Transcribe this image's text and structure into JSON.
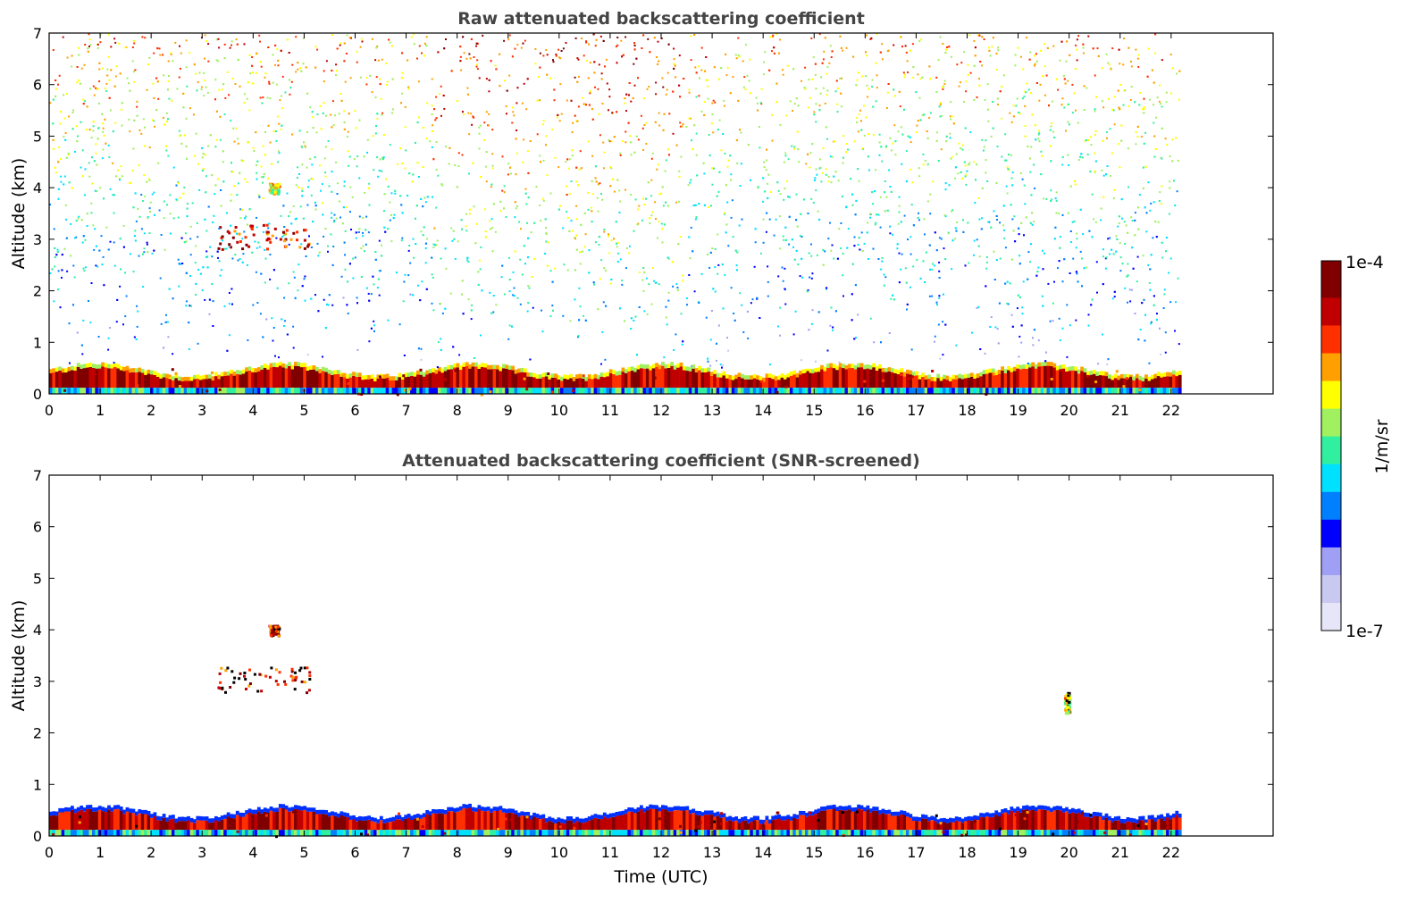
{
  "chart_data": [
    {
      "type": "heatmap",
      "title": "Raw attenuated backscattering coefficient",
      "xlabel": "",
      "ylabel": "Altitude (km)",
      "xlim": [
        0,
        24
      ],
      "ylim": [
        0,
        7
      ],
      "x_ticks": [
        "0",
        "1",
        "2",
        "3",
        "4",
        "5",
        "6",
        "7",
        "8",
        "9",
        "10",
        "11",
        "12",
        "13",
        "14",
        "15",
        "16",
        "17",
        "18",
        "19",
        "20",
        "21",
        "22"
      ],
      "y_ticks": [
        "0",
        "1",
        "2",
        "3",
        "4",
        "5",
        "6",
        "7"
      ],
      "data_extent_hours": [
        0,
        22.15
      ],
      "grid": false,
      "features": [
        {
          "label": "boundary-layer aerosol",
          "x_range": [
            0,
            22.15
          ],
          "y_range": [
            0,
            0.5
          ],
          "level": "high"
        },
        {
          "label": "elevated layer",
          "x_range": [
            3.3,
            5.1
          ],
          "y_range": [
            2.8,
            3.3
          ],
          "level": "high"
        },
        {
          "label": "elevated layer",
          "x_range": [
            4.3,
            4.5
          ],
          "y_range": [
            3.9,
            4.1
          ],
          "level": "medium"
        },
        {
          "label": "noise",
          "x_range": [
            0,
            22.15
          ],
          "y_range": [
            0.5,
            7
          ],
          "level": "noise"
        }
      ]
    },
    {
      "type": "heatmap",
      "title": "Attenuated backscattering coefficient (SNR-screened)",
      "xlabel": "Time (UTC)",
      "ylabel": "Altitude (km)",
      "xlim": [
        0,
        24
      ],
      "ylim": [
        0,
        7
      ],
      "x_ticks": [
        "0",
        "1",
        "2",
        "3",
        "4",
        "5",
        "6",
        "7",
        "8",
        "9",
        "10",
        "11",
        "12",
        "13",
        "14",
        "15",
        "16",
        "17",
        "18",
        "19",
        "20",
        "21",
        "22"
      ],
      "y_ticks": [
        "0",
        "1",
        "2",
        "3",
        "4",
        "5",
        "6",
        "7"
      ],
      "data_extent_hours": [
        0,
        22.15
      ],
      "grid": false,
      "features": [
        {
          "label": "boundary-layer aerosol",
          "x_range": [
            0,
            22.15
          ],
          "y_range": [
            0,
            0.5
          ],
          "level": "high"
        },
        {
          "label": "elevated layer",
          "x_range": [
            3.3,
            5.1
          ],
          "y_range": [
            2.8,
            3.3
          ],
          "level": "high"
        },
        {
          "label": "elevated layer",
          "x_range": [
            4.3,
            4.5
          ],
          "y_range": [
            3.9,
            4.1
          ],
          "level": "high"
        },
        {
          "label": "elevated plume",
          "x_range": [
            19.9,
            20.0
          ],
          "y_range": [
            2.4,
            2.8
          ],
          "level": "medium"
        }
      ]
    }
  ],
  "colorbar": {
    "label": "1/m/sr",
    "max_label": "1e-4",
    "min_label": "1e-7",
    "scale": "log",
    "colormap": "jet",
    "colors": [
      "#e6e6f8",
      "#c8c8f0",
      "#9f9ff5",
      "#0000ff",
      "#0080ff",
      "#00e0ff",
      "#30f0a0",
      "#a0f060",
      "#ffff00",
      "#ffa000",
      "#ff3000",
      "#c00000",
      "#800000"
    ]
  }
}
